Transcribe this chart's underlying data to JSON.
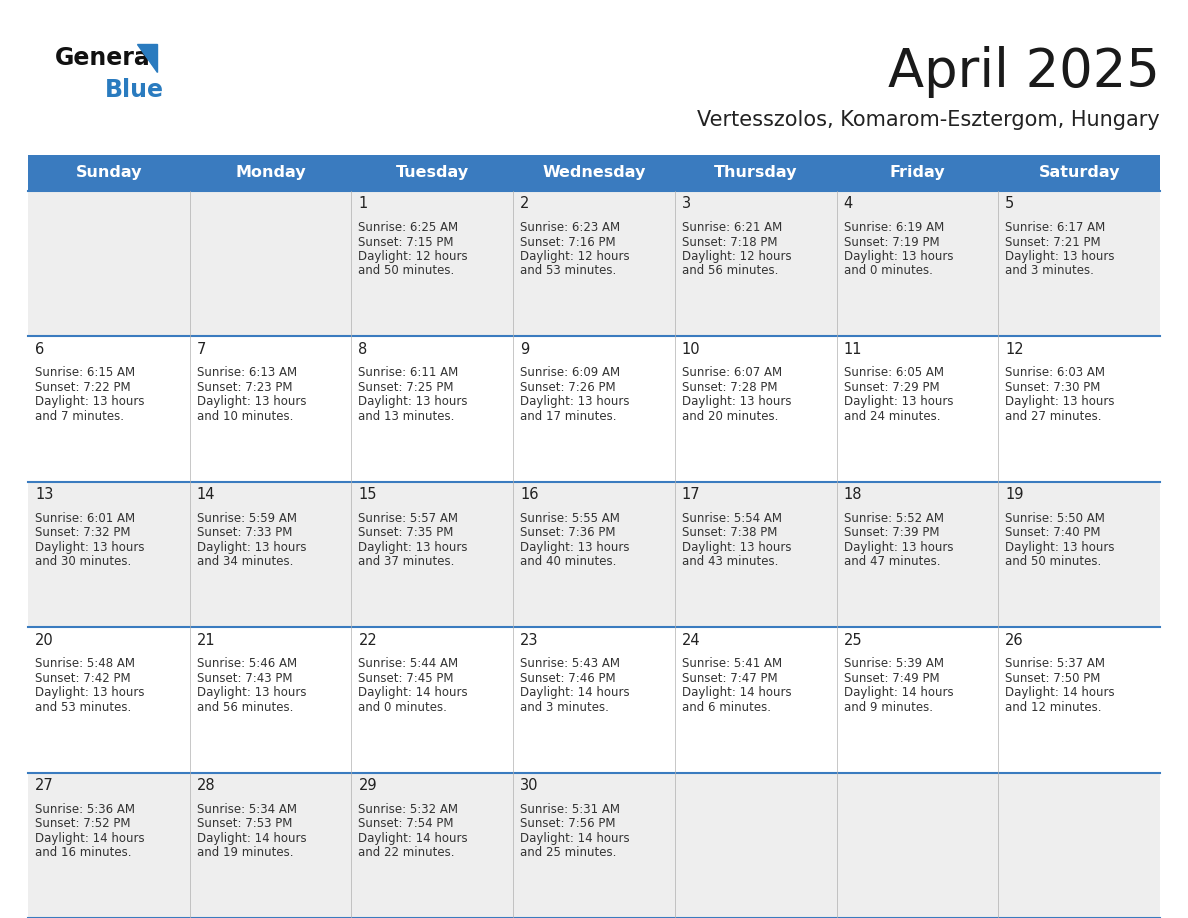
{
  "title": "April 2025",
  "subtitle": "Vertesszolos, Komarom-Esztergom, Hungary",
  "days_of_week": [
    "Sunday",
    "Monday",
    "Tuesday",
    "Wednesday",
    "Thursday",
    "Friday",
    "Saturday"
  ],
  "header_bg": "#3a7bbf",
  "header_text": "#ffffff",
  "row_bg_odd": "#eeeeee",
  "row_bg_even": "#ffffff",
  "cell_border_color": "#3a7bbf",
  "day_num_color": "#222222",
  "info_color": "#333333",
  "title_color": "#1a1a1a",
  "subtitle_color": "#222222",
  "logo_general_color": "#111111",
  "logo_blue_color": "#2a7bbf",
  "logo_triangle_color": "#2a7bbf",
  "weeks": [
    {
      "days": [
        {
          "date": "",
          "sunrise": "",
          "sunset": "",
          "daylight": ""
        },
        {
          "date": "",
          "sunrise": "",
          "sunset": "",
          "daylight": ""
        },
        {
          "date": "1",
          "sunrise": "Sunrise: 6:25 AM",
          "sunset": "Sunset: 7:15 PM",
          "daylight": "Daylight: 12 hours\nand 50 minutes."
        },
        {
          "date": "2",
          "sunrise": "Sunrise: 6:23 AM",
          "sunset": "Sunset: 7:16 PM",
          "daylight": "Daylight: 12 hours\nand 53 minutes."
        },
        {
          "date": "3",
          "sunrise": "Sunrise: 6:21 AM",
          "sunset": "Sunset: 7:18 PM",
          "daylight": "Daylight: 12 hours\nand 56 minutes."
        },
        {
          "date": "4",
          "sunrise": "Sunrise: 6:19 AM",
          "sunset": "Sunset: 7:19 PM",
          "daylight": "Daylight: 13 hours\nand 0 minutes."
        },
        {
          "date": "5",
          "sunrise": "Sunrise: 6:17 AM",
          "sunset": "Sunset: 7:21 PM",
          "daylight": "Daylight: 13 hours\nand 3 minutes."
        }
      ]
    },
    {
      "days": [
        {
          "date": "6",
          "sunrise": "Sunrise: 6:15 AM",
          "sunset": "Sunset: 7:22 PM",
          "daylight": "Daylight: 13 hours\nand 7 minutes."
        },
        {
          "date": "7",
          "sunrise": "Sunrise: 6:13 AM",
          "sunset": "Sunset: 7:23 PM",
          "daylight": "Daylight: 13 hours\nand 10 minutes."
        },
        {
          "date": "8",
          "sunrise": "Sunrise: 6:11 AM",
          "sunset": "Sunset: 7:25 PM",
          "daylight": "Daylight: 13 hours\nand 13 minutes."
        },
        {
          "date": "9",
          "sunrise": "Sunrise: 6:09 AM",
          "sunset": "Sunset: 7:26 PM",
          "daylight": "Daylight: 13 hours\nand 17 minutes."
        },
        {
          "date": "10",
          "sunrise": "Sunrise: 6:07 AM",
          "sunset": "Sunset: 7:28 PM",
          "daylight": "Daylight: 13 hours\nand 20 minutes."
        },
        {
          "date": "11",
          "sunrise": "Sunrise: 6:05 AM",
          "sunset": "Sunset: 7:29 PM",
          "daylight": "Daylight: 13 hours\nand 24 minutes."
        },
        {
          "date": "12",
          "sunrise": "Sunrise: 6:03 AM",
          "sunset": "Sunset: 7:30 PM",
          "daylight": "Daylight: 13 hours\nand 27 minutes."
        }
      ]
    },
    {
      "days": [
        {
          "date": "13",
          "sunrise": "Sunrise: 6:01 AM",
          "sunset": "Sunset: 7:32 PM",
          "daylight": "Daylight: 13 hours\nand 30 minutes."
        },
        {
          "date": "14",
          "sunrise": "Sunrise: 5:59 AM",
          "sunset": "Sunset: 7:33 PM",
          "daylight": "Daylight: 13 hours\nand 34 minutes."
        },
        {
          "date": "15",
          "sunrise": "Sunrise: 5:57 AM",
          "sunset": "Sunset: 7:35 PM",
          "daylight": "Daylight: 13 hours\nand 37 minutes."
        },
        {
          "date": "16",
          "sunrise": "Sunrise: 5:55 AM",
          "sunset": "Sunset: 7:36 PM",
          "daylight": "Daylight: 13 hours\nand 40 minutes."
        },
        {
          "date": "17",
          "sunrise": "Sunrise: 5:54 AM",
          "sunset": "Sunset: 7:38 PM",
          "daylight": "Daylight: 13 hours\nand 43 minutes."
        },
        {
          "date": "18",
          "sunrise": "Sunrise: 5:52 AM",
          "sunset": "Sunset: 7:39 PM",
          "daylight": "Daylight: 13 hours\nand 47 minutes."
        },
        {
          "date": "19",
          "sunrise": "Sunrise: 5:50 AM",
          "sunset": "Sunset: 7:40 PM",
          "daylight": "Daylight: 13 hours\nand 50 minutes."
        }
      ]
    },
    {
      "days": [
        {
          "date": "20",
          "sunrise": "Sunrise: 5:48 AM",
          "sunset": "Sunset: 7:42 PM",
          "daylight": "Daylight: 13 hours\nand 53 minutes."
        },
        {
          "date": "21",
          "sunrise": "Sunrise: 5:46 AM",
          "sunset": "Sunset: 7:43 PM",
          "daylight": "Daylight: 13 hours\nand 56 minutes."
        },
        {
          "date": "22",
          "sunrise": "Sunrise: 5:44 AM",
          "sunset": "Sunset: 7:45 PM",
          "daylight": "Daylight: 14 hours\nand 0 minutes."
        },
        {
          "date": "23",
          "sunrise": "Sunrise: 5:43 AM",
          "sunset": "Sunset: 7:46 PM",
          "daylight": "Daylight: 14 hours\nand 3 minutes."
        },
        {
          "date": "24",
          "sunrise": "Sunrise: 5:41 AM",
          "sunset": "Sunset: 7:47 PM",
          "daylight": "Daylight: 14 hours\nand 6 minutes."
        },
        {
          "date": "25",
          "sunrise": "Sunrise: 5:39 AM",
          "sunset": "Sunset: 7:49 PM",
          "daylight": "Daylight: 14 hours\nand 9 minutes."
        },
        {
          "date": "26",
          "sunrise": "Sunrise: 5:37 AM",
          "sunset": "Sunset: 7:50 PM",
          "daylight": "Daylight: 14 hours\nand 12 minutes."
        }
      ]
    },
    {
      "days": [
        {
          "date": "27",
          "sunrise": "Sunrise: 5:36 AM",
          "sunset": "Sunset: 7:52 PM",
          "daylight": "Daylight: 14 hours\nand 16 minutes."
        },
        {
          "date": "28",
          "sunrise": "Sunrise: 5:34 AM",
          "sunset": "Sunset: 7:53 PM",
          "daylight": "Daylight: 14 hours\nand 19 minutes."
        },
        {
          "date": "29",
          "sunrise": "Sunrise: 5:32 AM",
          "sunset": "Sunset: 7:54 PM",
          "daylight": "Daylight: 14 hours\nand 22 minutes."
        },
        {
          "date": "30",
          "sunrise": "Sunrise: 5:31 AM",
          "sunset": "Sunset: 7:56 PM",
          "daylight": "Daylight: 14 hours\nand 25 minutes."
        },
        {
          "date": "",
          "sunrise": "",
          "sunset": "",
          "daylight": ""
        },
        {
          "date": "",
          "sunrise": "",
          "sunset": "",
          "daylight": ""
        },
        {
          "date": "",
          "sunrise": "",
          "sunset": "",
          "daylight": ""
        }
      ]
    }
  ]
}
